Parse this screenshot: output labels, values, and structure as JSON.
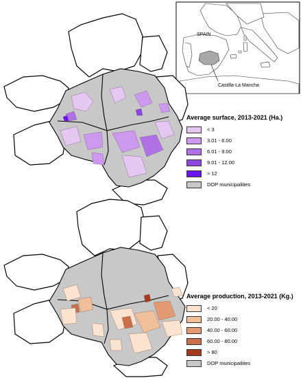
{
  "inset": {
    "country_label": "SPAIN",
    "region_label": "Castilla-La Mancha"
  },
  "map_top": {
    "legend_title": "Average surface, 2013-2021 (Ha.)",
    "classes": [
      {
        "label": "< 3",
        "color": "#e6c7f2"
      },
      {
        "label": "3.01 - 6.00",
        "color": "#cc99ee"
      },
      {
        "label": "6.01 - 9.00",
        "color": "#b070e6"
      },
      {
        "label": "9.01 - 12.00",
        "color": "#8f45e0"
      },
      {
        "label": "> 12",
        "color": "#6a14f0"
      },
      {
        "label": "DOP municipalities",
        "color": "#c8c8c8"
      }
    ]
  },
  "map_bottom": {
    "legend_title": "Average production, 2013-2021 (Kg.)",
    "classes": [
      {
        "label": "< 20",
        "color": "#fbe3cf"
      },
      {
        "label": "20.00 - 40.00",
        "color": "#f2bf9b"
      },
      {
        "label": "40.00 - 60.00",
        "color": "#e39a72"
      },
      {
        "label": "60.00 - 80.00",
        "color": "#c9704b"
      },
      {
        "label": "> 80",
        "color": "#a63a1f"
      },
      {
        "label": "DOP municipalities",
        "color": "#c8c8c8"
      }
    ]
  }
}
